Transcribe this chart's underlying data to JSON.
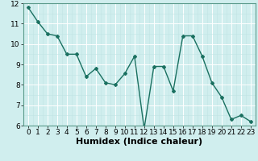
{
  "x": [
    0,
    1,
    2,
    3,
    4,
    5,
    6,
    7,
    8,
    9,
    10,
    11,
    12,
    13,
    14,
    15,
    16,
    17,
    18,
    19,
    20,
    21,
    22,
    23
  ],
  "y": [
    11.8,
    11.1,
    10.5,
    10.4,
    9.5,
    9.5,
    8.4,
    8.8,
    8.1,
    8.0,
    8.55,
    9.4,
    5.85,
    8.9,
    8.9,
    7.7,
    10.4,
    10.4,
    9.4,
    8.1,
    7.4,
    6.3,
    6.5,
    6.2
  ],
  "xlabel": "Humidex (Indice chaleur)",
  "ylim": [
    6,
    12
  ],
  "xlim_left": -0.5,
  "xlim_right": 23.5,
  "yticks": [
    6,
    7,
    8,
    9,
    10,
    11,
    12
  ],
  "xticks": [
    0,
    1,
    2,
    3,
    4,
    5,
    6,
    7,
    8,
    9,
    10,
    11,
    12,
    13,
    14,
    15,
    16,
    17,
    18,
    19,
    20,
    21,
    22,
    23
  ],
  "line_color": "#1a7060",
  "marker": "D",
  "marker_size": 2.0,
  "bg_color": "#d0eeee",
  "grid_major_color": "#ffffff",
  "grid_minor_color": "#c0e4e4",
  "xlabel_fontsize": 8,
  "tick_fontsize": 6.5,
  "linewidth": 1.0
}
